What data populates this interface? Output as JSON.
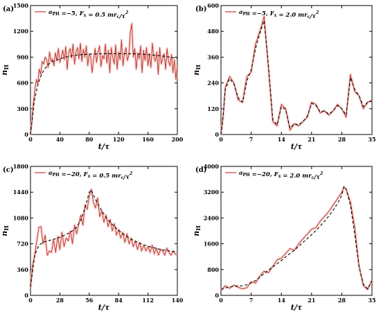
{
  "chart_data": [
    {
      "type": "line",
      "panel_label": "(a)",
      "legend": "a_PH = −5, F_x = 0.5 mr_c/τ²",
      "legend_parts": {
        "a_sub": "PH",
        "a_val": " =−5,  ",
        "f_sub": "x",
        "f_val": " = 0.5 ",
        "unit": "mr",
        "unit_sub": "c",
        "unit_tail": "/τ",
        "unit_exp": "2"
      },
      "xlabel": "t/τ",
      "ylabel": "n_H",
      "xlim": [
        0,
        200
      ],
      "ylim": [
        0,
        1500
      ],
      "xticks": [
        0,
        40,
        80,
        120,
        160,
        200
      ],
      "yticks": [
        0,
        300,
        600,
        900,
        1200,
        1500
      ],
      "series": [
        {
          "style": "solid",
          "color": "#c0392b",
          "x": [
            0,
            2,
            4,
            6,
            8,
            10,
            12,
            14,
            16,
            18,
            20,
            22,
            24,
            26,
            28,
            30,
            32,
            34,
            36,
            38,
            40,
            42,
            44,
            46,
            48,
            50,
            52,
            54,
            56,
            58,
            60,
            62,
            64,
            66,
            68,
            70,
            72,
            74,
            76,
            78,
            80,
            82,
            84,
            86,
            88,
            90,
            92,
            94,
            96,
            98,
            100,
            102,
            104,
            106,
            108,
            110,
            112,
            114,
            116,
            118,
            120,
            122,
            124,
            126,
            128,
            130,
            132,
            134,
            136,
            138,
            140,
            142,
            144,
            146,
            148,
            150,
            152,
            154,
            156,
            158,
            160,
            162,
            164,
            166,
            168,
            170,
            172,
            174,
            176,
            178,
            180,
            182,
            184,
            186,
            188,
            190,
            192,
            194,
            196,
            198,
            200
          ],
          "y": [
            0,
            160,
            370,
            520,
            640,
            590,
            760,
            700,
            850,
            820,
            900,
            870,
            780,
            960,
            850,
            880,
            800,
            950,
            860,
            1000,
            840,
            900,
            980,
            870,
            1020,
            760,
            950,
            1000,
            890,
            1050,
            820,
            960,
            1010,
            880,
            1060,
            850,
            990,
            900,
            1030,
            800,
            940,
            900,
            720,
            880,
            1000,
            840,
            960,
            1030,
            790,
            920,
            880,
            1050,
            830,
            980,
            720,
            1010,
            900,
            820,
            1040,
            760,
            960,
            870,
            1100,
            800,
            940,
            1010,
            860,
            920,
            1190,
            1290,
            900,
            1000,
            760,
            950,
            880,
            1030,
            720,
            980,
            860,
            1010,
            800,
            940,
            780,
            1060,
            900,
            850,
            960,
            700,
            1010,
            820,
            880,
            940,
            760,
            1000,
            850,
            800,
            930,
            720,
            870,
            640,
            800
          ]
        },
        {
          "style": "dashed",
          "color": "#000000",
          "x": [
            0,
            5,
            10,
            15,
            20,
            25,
            30,
            40,
            50,
            60,
            70,
            80,
            90,
            100,
            110,
            120,
            130,
            140,
            150,
            160,
            170,
            180,
            190,
            200
          ],
          "y": [
            0,
            380,
            580,
            700,
            770,
            820,
            850,
            880,
            905,
            920,
            930,
            935,
            938,
            940,
            940,
            940,
            940,
            938,
            935,
            930,
            922,
            912,
            900,
            885
          ]
        }
      ]
    },
    {
      "type": "line",
      "panel_label": "(b)",
      "legend": "a_PH = −5, F_x = 2.0 mr_c/τ²",
      "legend_parts": {
        "a_sub": "PH",
        "a_val": " =−5,  ",
        "f_sub": "x",
        "f_val": " = 2.0 ",
        "unit": "mr",
        "unit_sub": "c",
        "unit_tail": "/τ",
        "unit_exp": "2"
      },
      "xlabel": "t/τ",
      "ylabel": "n_H",
      "xlim": [
        0,
        35
      ],
      "ylim": [
        0,
        600
      ],
      "xticks": [
        0,
        7,
        14,
        21,
        28,
        35
      ],
      "yticks": [
        0,
        120,
        240,
        360,
        480,
        600
      ],
      "series": [
        {
          "style": "solid",
          "color": "#c0392b",
          "x": [
            0,
            0.5,
            1,
            2,
            3,
            4,
            5,
            6,
            7,
            8,
            9,
            10,
            11,
            12,
            13,
            14,
            15,
            16,
            17,
            18,
            19,
            20,
            21,
            22,
            23,
            24,
            25,
            26,
            27,
            28,
            29,
            30,
            31,
            32,
            33,
            34,
            35
          ],
          "y": [
            0,
            80,
            220,
            270,
            240,
            160,
            150,
            270,
            290,
            420,
            480,
            550,
            310,
            60,
            40,
            140,
            120,
            20,
            50,
            40,
            60,
            80,
            150,
            140,
            100,
            110,
            90,
            110,
            140,
            120,
            80,
            280,
            200,
            180,
            120,
            150,
            160
          ]
        },
        {
          "style": "dashed",
          "color": "#000000",
          "x": [
            0,
            0.5,
            1,
            2,
            3,
            4,
            5,
            6,
            7,
            8,
            9,
            10,
            11,
            12,
            13,
            14,
            15,
            16,
            17,
            18,
            19,
            20,
            21,
            22,
            23,
            24,
            25,
            26,
            27,
            28,
            29,
            30,
            31,
            32,
            33,
            34,
            35
          ],
          "y": [
            0,
            90,
            210,
            260,
            235,
            170,
            150,
            250,
            300,
            400,
            470,
            530,
            320,
            70,
            45,
            130,
            115,
            30,
            50,
            45,
            60,
            85,
            145,
            135,
            105,
            110,
            95,
            110,
            135,
            120,
            90,
            265,
            210,
            180,
            130,
            150,
            155
          ]
        }
      ]
    },
    {
      "type": "line",
      "panel_label": "(c)",
      "legend": "a_PH = −20, F_x = 0.5 mr_c/τ²",
      "legend_parts": {
        "a_sub": "PH",
        "a_val": " =−20,  ",
        "f_sub": "x",
        "f_val": " = 0.5 ",
        "unit": "mr",
        "unit_sub": "c",
        "unit_tail": "/τ",
        "unit_exp": "2"
      },
      "xlabel": "t/τ",
      "ylabel": "n_H",
      "xlim": [
        0,
        140
      ],
      "ylim": [
        0,
        1800
      ],
      "xticks": [
        0,
        28,
        56,
        84,
        112,
        140
      ],
      "yticks": [
        0,
        360,
        720,
        1080,
        1440,
        1800
      ],
      "series": [
        {
          "style": "solid",
          "color": "#c0392b",
          "x": [
            0,
            2,
            4,
            6,
            8,
            10,
            12,
            14,
            16,
            18,
            20,
            22,
            24,
            26,
            28,
            30,
            32,
            34,
            36,
            38,
            40,
            42,
            44,
            46,
            48,
            50,
            52,
            54,
            56,
            58,
            60,
            62,
            64,
            66,
            68,
            70,
            72,
            74,
            76,
            78,
            80,
            82,
            84,
            86,
            88,
            90,
            92,
            94,
            96,
            98,
            100,
            102,
            104,
            106,
            108,
            110,
            112,
            114,
            116,
            118,
            120,
            122,
            124,
            126,
            128,
            130,
            132,
            134,
            136,
            138,
            140
          ],
          "y": [
            100,
            420,
            560,
            760,
            950,
            960,
            720,
            840,
            560,
            620,
            600,
            780,
            600,
            820,
            640,
            880,
            680,
            800,
            760,
            900,
            720,
            980,
            860,
            1000,
            1120,
            980,
            1260,
            1200,
            1380,
            1480,
            1300,
            1220,
            1360,
            1100,
            1180,
            1020,
            1120,
            960,
            1060,
            900,
            1000,
            840,
            920,
            800,
            880,
            740,
            860,
            720,
            800,
            680,
            760,
            640,
            740,
            620,
            700,
            620,
            680,
            600,
            700,
            580,
            660,
            560,
            640,
            620,
            560,
            660,
            600,
            560,
            620,
            580,
            560
          ]
        },
        {
          "style": "dashed",
          "color": "#000000",
          "x": [
            0,
            4,
            8,
            12,
            16,
            20,
            24,
            28,
            32,
            36,
            40,
            44,
            48,
            52,
            56,
            58,
            60,
            64,
            68,
            72,
            76,
            80,
            84,
            88,
            92,
            96,
            100,
            104,
            108,
            112,
            116,
            120,
            124,
            128,
            132,
            136,
            140
          ],
          "y": [
            120,
            560,
            700,
            740,
            760,
            775,
            790,
            810,
            835,
            865,
            900,
            950,
            1050,
            1220,
            1440,
            1470,
            1400,
            1280,
            1180,
            1090,
            1020,
            960,
            910,
            860,
            820,
            785,
            755,
            730,
            705,
            685,
            670,
            655,
            640,
            630,
            620,
            612,
            605
          ]
        }
      ]
    },
    {
      "type": "line",
      "panel_label": "(d)",
      "legend": "a_PH = −20, F_x = 2.0 mr_c/τ²",
      "legend_parts": {
        "a_sub": "PH",
        "a_val": " =−20,  ",
        "f_sub": "x",
        "f_val": " = 2.0 ",
        "unit": "mr",
        "unit_sub": "c",
        "unit_tail": "/τ",
        "unit_exp": "2"
      },
      "xlabel": "t/τ",
      "ylabel": "n_H",
      "xlim": [
        0,
        35
      ],
      "ylim": [
        0,
        4000
      ],
      "xticks": [
        0,
        7,
        14,
        21,
        28,
        35
      ],
      "yticks": [
        0,
        800,
        1600,
        2400,
        3200,
        4000
      ],
      "series": [
        {
          "style": "solid",
          "color": "#c0392b",
          "x": [
            0,
            1,
            2,
            3,
            4,
            5,
            6,
            7,
            8,
            9,
            10,
            11,
            12,
            13,
            14,
            15,
            16,
            17,
            18,
            19,
            20,
            21,
            22,
            23,
            24,
            25,
            26,
            27,
            28,
            28.5,
            29,
            30,
            31,
            32,
            33,
            34,
            35
          ],
          "y": [
            150,
            300,
            220,
            320,
            250,
            200,
            240,
            420,
            380,
            600,
            750,
            700,
            900,
            1100,
            1150,
            1300,
            1450,
            1400,
            1600,
            1750,
            1900,
            2050,
            2100,
            2300,
            2450,
            2600,
            2800,
            3000,
            3200,
            3350,
            3300,
            2900,
            2100,
            900,
            300,
            180,
            480
          ]
        },
        {
          "style": "dashed",
          "color": "#000000",
          "x": [
            0,
            1,
            2,
            3,
            4,
            5,
            6,
            7,
            8,
            9,
            10,
            11,
            12,
            13,
            14,
            15,
            16,
            17,
            18,
            19,
            20,
            21,
            22,
            23,
            24,
            25,
            26,
            27,
            28,
            28.5,
            29,
            30,
            31,
            32,
            33,
            34,
            35
          ],
          "y": [
            180,
            230,
            260,
            280,
            290,
            300,
            330,
            390,
            460,
            560,
            680,
            780,
            880,
            980,
            1080,
            1190,
            1300,
            1400,
            1520,
            1640,
            1760,
            1880,
            2010,
            2150,
            2300,
            2460,
            2640,
            2850,
            3100,
            3380,
            3300,
            2800,
            1900,
            900,
            350,
            200,
            450
          ]
        }
      ]
    }
  ]
}
